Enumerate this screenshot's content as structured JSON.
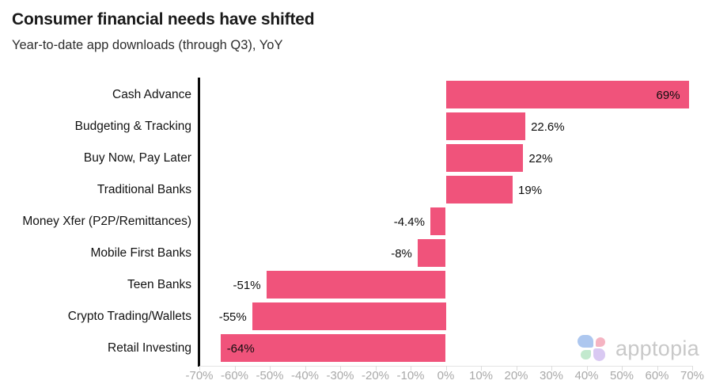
{
  "header": {
    "title": "Consumer financial needs have shifted",
    "subtitle": "Year-to-date app downloads (through Q3), YoY"
  },
  "chart_data": {
    "type": "bar",
    "orientation": "horizontal",
    "title": "Consumer financial needs have shifted",
    "subtitle": "Year-to-date app downloads (through Q3), YoY",
    "xlabel": "",
    "ylabel": "",
    "categories": [
      "Cash Advance",
      "Budgeting & Tracking",
      "Buy Now, Pay Later",
      "Traditional Banks",
      "Money Xfer (P2P/Remittances)",
      "Mobile First Banks",
      "Teen Banks",
      "Crypto Trading/Wallets",
      "Retail Investing"
    ],
    "values": [
      69,
      22.6,
      22,
      19,
      -4.4,
      -8,
      -51,
      -55,
      -64
    ],
    "value_labels": [
      "69%",
      "22.6%",
      "22%",
      "19%",
      "-4.4%",
      "-8%",
      "-51%",
      "-55%",
      "-64%"
    ],
    "label_inside": [
      true,
      false,
      false,
      false,
      false,
      false,
      false,
      false,
      true
    ],
    "xlim": [
      -70,
      70
    ],
    "x_tick_step": 10,
    "x_ticks": [
      "-70%",
      "-60%",
      "-50%",
      "-40%",
      "-30%",
      "-20%",
      "-10%",
      "0%",
      "10%",
      "20%",
      "30%",
      "40%",
      "50%",
      "60%",
      "70%"
    ],
    "grid": false,
    "legend": null,
    "bar_color": "#F0537B",
    "axis_line_color": "#0a0a0a",
    "tick_label_color": "#a9a9a9"
  },
  "branding": {
    "logo_text": "apptopia",
    "petal_colors": {
      "blue": "#a9c5ef",
      "pink": "#f5b0bf",
      "green": "#bfe8cc",
      "purple": "#d8c7f2"
    }
  }
}
